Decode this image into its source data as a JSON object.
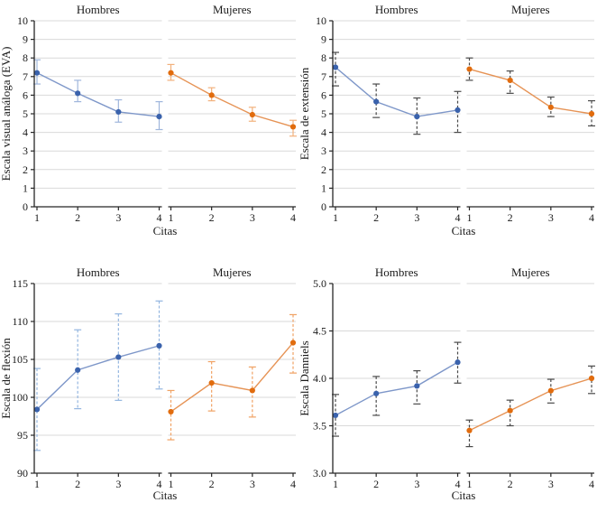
{
  "figure_title": "",
  "ui": {
    "x_label": "Citas",
    "facet_labels": [
      "Hombres",
      "Mujeres"
    ]
  },
  "colors": {
    "background": "#ffffff",
    "gridline": "#d9d9d9",
    "axis": "#262626",
    "text": "#1a1a1a",
    "blue_marker": "#3a62ac",
    "blue_line": "#7e97c9",
    "blue_error_light": "#9fb6dc",
    "blue_error_dashed": "#94b6e0",
    "orange_marker": "#e16c0e",
    "orange_line": "#e69355",
    "orange_error_light": "#f2b17c",
    "orange_error_dashed": "#f0a264",
    "dark_error": "#4a4a4a"
  },
  "chart_data": [
    {
      "id": "eva",
      "type": "line",
      "title": "",
      "xlabel": "Citas",
      "ylabel": "Escala visual análoga (EVA)",
      "facets": [
        "Hombres",
        "Mujeres"
      ],
      "x": [
        1,
        2,
        3,
        4
      ],
      "ylim": [
        0,
        10
      ],
      "ytick_values": [
        0,
        1,
        2,
        3,
        4,
        5,
        6,
        7,
        8,
        9,
        10
      ],
      "ytick_labels": [
        "0",
        "1",
        "2",
        "3",
        "4",
        "5",
        "6",
        "7",
        "8",
        "9",
        "10"
      ],
      "grid": "horizontal",
      "legend": "none",
      "series": [
        {
          "name": "Hombres",
          "facet": 0,
          "marker_color": "#3a62ac",
          "line_color": "#7e97c9",
          "err_color": "#9fb6dc",
          "err_dashed": false,
          "values": [
            7.2,
            6.1,
            5.1,
            4.85
          ],
          "err_low": [
            6.6,
            5.65,
            4.55,
            4.15
          ],
          "err_high": [
            7.9,
            6.8,
            5.75,
            5.65
          ]
        },
        {
          "name": "Mujeres",
          "facet": 1,
          "marker_color": "#e16c0e",
          "line_color": "#e69355",
          "err_color": "#f2b17c",
          "err_dashed": false,
          "values": [
            7.2,
            6.0,
            4.95,
            4.3
          ],
          "err_low": [
            6.8,
            5.7,
            4.6,
            3.8
          ],
          "err_high": [
            7.65,
            6.4,
            5.35,
            4.65
          ]
        }
      ]
    },
    {
      "id": "extension",
      "type": "line",
      "title": "",
      "xlabel": "Citas",
      "ylabel": "Escala de extensión",
      "facets": [
        "Hombres",
        "Mujeres"
      ],
      "x": [
        1,
        2,
        3,
        4
      ],
      "ylim": [
        0,
        10
      ],
      "ytick_values": [
        0,
        1,
        2,
        3,
        4,
        5,
        6,
        7,
        8,
        9,
        10
      ],
      "ytick_labels": [
        "0",
        "1",
        "2",
        "3",
        "4",
        "5",
        "6",
        "7",
        "8",
        "9",
        "10"
      ],
      "grid": "horizontal",
      "legend": "none",
      "series": [
        {
          "name": "Hombres",
          "facet": 0,
          "marker_color": "#3a62ac",
          "line_color": "#7e97c9",
          "err_color": "#4a4a4a",
          "err_dashed": true,
          "values": [
            7.5,
            5.65,
            4.85,
            5.2
          ],
          "err_low": [
            6.5,
            4.8,
            3.9,
            4.0
          ],
          "err_high": [
            8.3,
            6.6,
            5.85,
            6.2
          ]
        },
        {
          "name": "Mujeres",
          "facet": 1,
          "marker_color": "#e16c0e",
          "line_color": "#e69355",
          "err_color": "#4a4a4a",
          "err_dashed": true,
          "values": [
            7.4,
            6.8,
            5.35,
            5.0
          ],
          "err_low": [
            6.8,
            6.1,
            4.85,
            4.35
          ],
          "err_high": [
            8.0,
            7.3,
            5.9,
            5.7
          ]
        }
      ]
    },
    {
      "id": "flexion",
      "type": "line",
      "title": "",
      "xlabel": "Citas",
      "ylabel": "Escala de flexión",
      "facets": [
        "Hombres",
        "Mujeres"
      ],
      "x": [
        1,
        2,
        3,
        4
      ],
      "ylim": [
        90,
        115
      ],
      "ytick_values": [
        90,
        95,
        100,
        105,
        110,
        115
      ],
      "ytick_labels": [
        "90",
        "95",
        "100",
        "105",
        "110",
        "115"
      ],
      "grid": "horizontal",
      "legend": "none",
      "series": [
        {
          "name": "Hombres",
          "facet": 0,
          "marker_color": "#3a62ac",
          "line_color": "#7e97c9",
          "err_color": "#94b6e0",
          "err_dashed": true,
          "values": [
            98.4,
            103.6,
            105.3,
            106.8
          ],
          "err_low": [
            93.0,
            98.5,
            99.6,
            101.1
          ],
          "err_high": [
            103.8,
            108.9,
            111.0,
            112.7
          ]
        },
        {
          "name": "Mujeres",
          "facet": 1,
          "marker_color": "#e16c0e",
          "line_color": "#e69355",
          "err_color": "#f0a264",
          "err_dashed": true,
          "values": [
            98.1,
            101.9,
            100.9,
            107.2
          ],
          "err_low": [
            94.4,
            98.2,
            97.4,
            103.2
          ],
          "err_high": [
            100.9,
            104.7,
            104.0,
            110.9
          ]
        }
      ]
    },
    {
      "id": "danniels",
      "type": "line",
      "title": "",
      "xlabel": "Citas",
      "ylabel": "Escala Danniels",
      "facets": [
        "Hombres",
        "Mujeres"
      ],
      "x": [
        1,
        2,
        3,
        4
      ],
      "ylim": [
        3.0,
        5.0
      ],
      "ytick_values": [
        3.0,
        3.5,
        4.0,
        4.5,
        5.0
      ],
      "ytick_labels": [
        "3.0",
        "3.5",
        "4.0",
        "4.5",
        "5.0"
      ],
      "grid": "horizontal",
      "legend": "none",
      "series": [
        {
          "name": "Hombres",
          "facet": 0,
          "marker_color": "#3a62ac",
          "line_color": "#7e97c9",
          "err_color": "#4a4a4a",
          "err_dashed": true,
          "values": [
            3.61,
            3.84,
            3.92,
            4.17
          ],
          "err_low": [
            3.39,
            3.61,
            3.73,
            3.95
          ],
          "err_high": [
            3.83,
            4.02,
            4.08,
            4.38
          ]
        },
        {
          "name": "Mujeres",
          "facet": 1,
          "marker_color": "#e16c0e",
          "line_color": "#e69355",
          "err_color": "#4a4a4a",
          "err_dashed": true,
          "values": [
            3.45,
            3.66,
            3.87,
            4.0
          ],
          "err_low": [
            3.28,
            3.5,
            3.74,
            3.84
          ],
          "err_high": [
            3.56,
            3.77,
            3.99,
            4.13
          ]
        }
      ]
    }
  ]
}
